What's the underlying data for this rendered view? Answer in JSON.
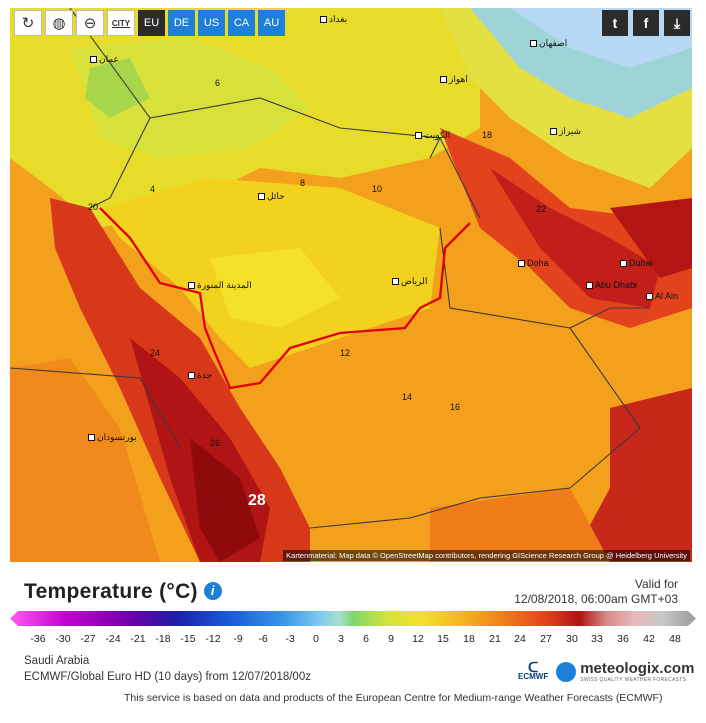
{
  "toolbar": {
    "city_label": "CITY",
    "regions": [
      "EU",
      "DE",
      "US",
      "CA",
      "AU"
    ]
  },
  "map": {
    "attribution": "Kartenmaterial: Map data © OpenStreetMap contributors, rendering GIScience Research Group @ Heidelberg University",
    "hotspot_value": "28",
    "city_labels": [
      "بغداد",
      "اصفهان",
      "عمان",
      "الكويت",
      "حائل",
      "المدينة المنورة",
      "الرياض",
      "جدة",
      "بورتسودان",
      "Doha",
      "Dubai",
      "Abu Dhabi",
      "Al Ain",
      "شيراز",
      "اهواز"
    ],
    "temp_labels": [
      {
        "t": "6"
      },
      {
        "t": "4"
      },
      {
        "t": "8"
      },
      {
        "t": "10"
      },
      {
        "t": "12"
      },
      {
        "t": "14"
      },
      {
        "t": "16"
      },
      {
        "t": "18"
      },
      {
        "t": "20"
      },
      {
        "t": "22"
      },
      {
        "t": "24"
      },
      {
        "t": "26"
      }
    ]
  },
  "legend": {
    "title": "Temperature (°C)",
    "valid_label": "Valid for",
    "valid_time": "12/08/2018, 06:00am GMT+03",
    "ticks": [
      "-36",
      "-30",
      "-27",
      "-24",
      "-21",
      "-18",
      "-15",
      "-12",
      "-9",
      "-6",
      "-3",
      "0",
      "3",
      "6",
      "9",
      "12",
      "15",
      "18",
      "21",
      "24",
      "27",
      "30",
      "33",
      "36",
      "42",
      "48"
    ]
  },
  "meta": {
    "region": "Saudi Arabia",
    "model": "ECMWF/Global Euro HD (10 days) from 12/07/2018/00z"
  },
  "logos": {
    "ecmwf": "ECMWF",
    "meteologix": "meteologix.com",
    "tagline": "SWISS QUALITY WEATHER FORECASTS"
  },
  "footer": "This service is based on data and products of the European Centre for Medium-range Weather Forecasts (ECMWF)"
}
